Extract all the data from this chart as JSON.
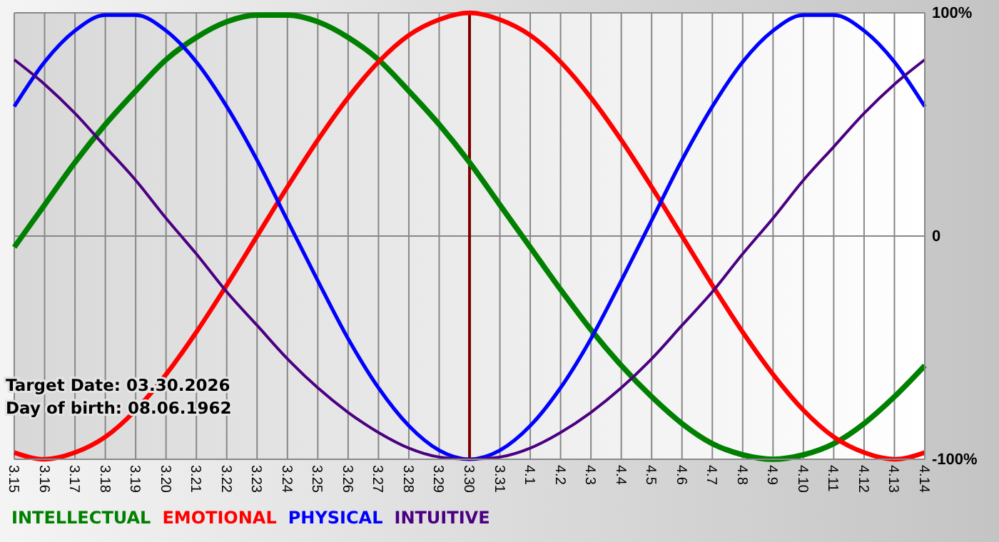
{
  "chart_data": {
    "type": "line",
    "categories": [
      "3.15",
      "3.16",
      "3.17",
      "3.18",
      "3.19",
      "3.20",
      "3.21",
      "3.22",
      "3.23",
      "3.24",
      "3.25",
      "3.26",
      "3.27",
      "3.28",
      "3.29",
      "3.30",
      "3.31",
      "4.1",
      "4.2",
      "4.3",
      "4.4",
      "4.5",
      "4.6",
      "4.7",
      "4.8",
      "4.9",
      "4.10",
      "4.11",
      "4.12",
      "4.13",
      "4.14"
    ],
    "series": [
      {
        "name": "INTELLECTUAL",
        "color": "#008000",
        "values": [
          -5,
          14,
          33,
          50,
          65,
          79,
          89,
          96,
          99,
          99,
          96,
          89,
          79,
          65,
          50,
          33,
          14,
          -5,
          -24,
          -42,
          -58,
          -72,
          -84,
          -93,
          -98,
          -100,
          -98,
          -93,
          -84,
          -72,
          -58
        ]
      },
      {
        "name": "EMOTIONAL",
        "color": "#ff0000",
        "values": [
          -97,
          -100,
          -97,
          -90,
          -78,
          -62,
          -43,
          -22,
          0,
          22,
          43,
          62,
          78,
          90,
          97,
          100,
          97,
          90,
          78,
          62,
          43,
          22,
          0,
          -22,
          -43,
          -62,
          -78,
          -90,
          -97,
          -100,
          -97
        ]
      },
      {
        "name": "PHYSICAL",
        "color": "#0000ff",
        "values": [
          58,
          78,
          92,
          99,
          99,
          92,
          78,
          58,
          34,
          7,
          -20,
          -46,
          -68,
          -85,
          -96,
          -100,
          -96,
          -85,
          -68,
          -46,
          -20,
          7,
          34,
          58,
          78,
          92,
          99,
          99,
          92,
          78,
          58
        ]
      },
      {
        "name": "INTUITIVE",
        "color": "#4b0082",
        "values": [
          79,
          68,
          55,
          40,
          25,
          8,
          -8,
          -25,
          -40,
          -55,
          -68,
          -79,
          -88,
          -95,
          -99,
          -100,
          -99,
          -95,
          -88,
          -79,
          -68,
          -55,
          -40,
          -25,
          -8,
          8,
          25,
          40,
          55,
          68,
          79
        ]
      }
    ],
    "ylim": [
      -100,
      100
    ],
    "yticks": [
      {
        "value": -100,
        "label": "-100%"
      },
      0,
      {
        "value": 100,
        "label": "100%"
      }
    ],
    "grid": true,
    "legend": "bottom",
    "marker": "none",
    "line_style": "solid",
    "ref_lines": [
      {
        "axis": "x",
        "value": "3.30",
        "color": "#800000"
      }
    ],
    "annotations": [
      "Target Date: 03.30.2026",
      "Day of birth: 08.06.1962"
    ]
  }
}
